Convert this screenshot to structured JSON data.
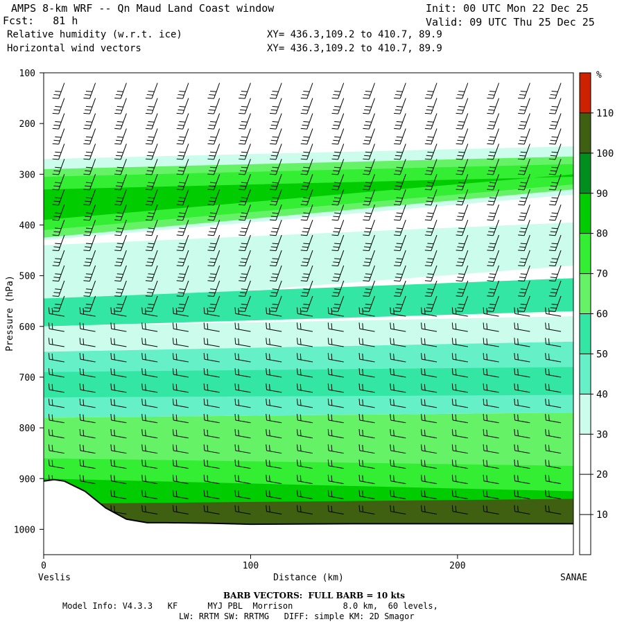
{
  "header": {
    "title": "AMPS 8-km WRF -- Qn Maud Land Coast window",
    "fcst": "Fcst:   81 h",
    "line3_left": "Relative humidity (w.r.t. ice)",
    "line4_left": "Horizontal wind vectors",
    "line3_right": "XY= 436.3,109.2 to 410.7, 89.9",
    "line4_right": "XY= 436.3,109.2 to 410.7, 89.9",
    "init": "Init: 00 UTC Mon 22 Dec 25",
    "valid": "Valid: 09 UTC Thu 25 Dec 25"
  },
  "footer": {
    "barb_note": "BARB VECTORS:  FULL BARB = 10 kts",
    "model_line": "Model Info: V4.3.3   KF      MYJ PBL  Morrison          8.0 km,  60 levels,",
    "model_line2": "LW: RRTM SW: RRTMG   DIFF: simple KM: 2D Smagor"
  },
  "chart_data": {
    "type": "heatmap",
    "ylabel": "Pressure (hPa)",
    "xlabel": "Distance (km)",
    "x_ticks": [
      0,
      100,
      200
    ],
    "y_ticks": [
      100,
      200,
      300,
      400,
      500,
      600,
      700,
      800,
      900,
      1000
    ],
    "xlim": [
      0,
      256
    ],
    "ylim": [
      1050,
      100
    ],
    "y_scale": "linear",
    "x_endpoints": {
      "left": "Veslis",
      "right": "SANAE"
    },
    "colorbar": {
      "unit": "%",
      "ticks": [
        10,
        20,
        30,
        40,
        50,
        60,
        70,
        80,
        90,
        100,
        110
      ],
      "bands": [
        {
          "from": 0,
          "to": 30,
          "color": "#ffffff"
        },
        {
          "from": 30,
          "to": 40,
          "color": "#ccfcec"
        },
        {
          "from": 40,
          "to": 50,
          "color": "#66f0c8"
        },
        {
          "from": 50,
          "to": 60,
          "color": "#33e6a4"
        },
        {
          "from": 60,
          "to": 70,
          "color": "#66f266"
        },
        {
          "from": 70,
          "to": 80,
          "color": "#33ee33"
        },
        {
          "from": 80,
          "to": 90,
          "color": "#00cc00"
        },
        {
          "from": 90,
          "to": 100,
          "color": "#008f1e"
        },
        {
          "from": 100,
          "to": 110,
          "color": "#3e6010"
        },
        {
          "from": 110,
          "to": 120,
          "color": "#cc2200"
        }
      ]
    },
    "rh_layers": [
      {
        "p_top": [
          270,
          245
        ],
        "p_bot": [
          430,
          340
        ],
        "rh": 35
      },
      {
        "p_top": [
          290,
          265
        ],
        "p_bot": [
          425,
          330
        ],
        "rh": 65
      },
      {
        "p_top": [
          305,
          280
        ],
        "p_bot": [
          410,
          320
        ],
        "rh": 75
      },
      {
        "p_top": [
          330,
          305
        ],
        "p_bot": [
          390,
          300
        ],
        "rh": 85
      },
      {
        "p_top": [
          440,
          395
        ],
        "p_bot": [
          560,
          480
        ],
        "rh": 35
      },
      {
        "p_top": [
          545,
          505
        ],
        "p_bot": [
          600,
          570
        ],
        "rh": 55
      },
      {
        "p_top": [
          600,
          580
        ],
        "p_bot": [
          650,
          630
        ],
        "rh": 35
      },
      {
        "p_top": [
          650,
          630
        ],
        "p_bot": [
          780,
          770
        ],
        "rh": 45
      },
      {
        "p_top": [
          690,
          680
        ],
        "p_bot": [
          740,
          735
        ],
        "rh": 55
      },
      {
        "p_top": [
          780,
          770
        ],
        "p_bot": [
          860,
          880
        ],
        "rh": 65
      },
      {
        "p_top": [
          860,
          875
        ],
        "p_bot": [
          990,
          990
        ],
        "rh": 75
      },
      {
        "p_top": [
          900,
          925
        ],
        "p_bot": [
          990,
          990
        ],
        "rh": 85
      },
      {
        "p_top": [
          950,
          940
        ],
        "p_bot": [
          990,
          990
        ],
        "rh": 105
      }
    ],
    "terrain": {
      "distance_km": [
        0,
        5,
        10,
        20,
        30,
        40,
        50,
        60,
        80,
        100,
        150,
        200,
        256
      ],
      "pressure_hpa": [
        905,
        902,
        905,
        925,
        958,
        980,
        987,
        987,
        988,
        990,
        989,
        989,
        989
      ]
    },
    "wind_barbs": {
      "columns_km": [
        10,
        25,
        40,
        55,
        70,
        85,
        100,
        115,
        130,
        145,
        160,
        175,
        190,
        205,
        220,
        235,
        250
      ],
      "upper_levels_hpa": [
        120,
        150,
        180,
        210,
        240,
        270,
        300,
        330,
        360,
        390,
        420,
        450,
        480,
        510,
        540
      ],
      "lower_levels_hpa": [
        580,
        610,
        640,
        670,
        700,
        730,
        760,
        790,
        820,
        850,
        880,
        910,
        940,
        970
      ],
      "upper_direction": "northerly",
      "lower_direction": "easterly",
      "barb_unit_kts": 10
    }
  }
}
